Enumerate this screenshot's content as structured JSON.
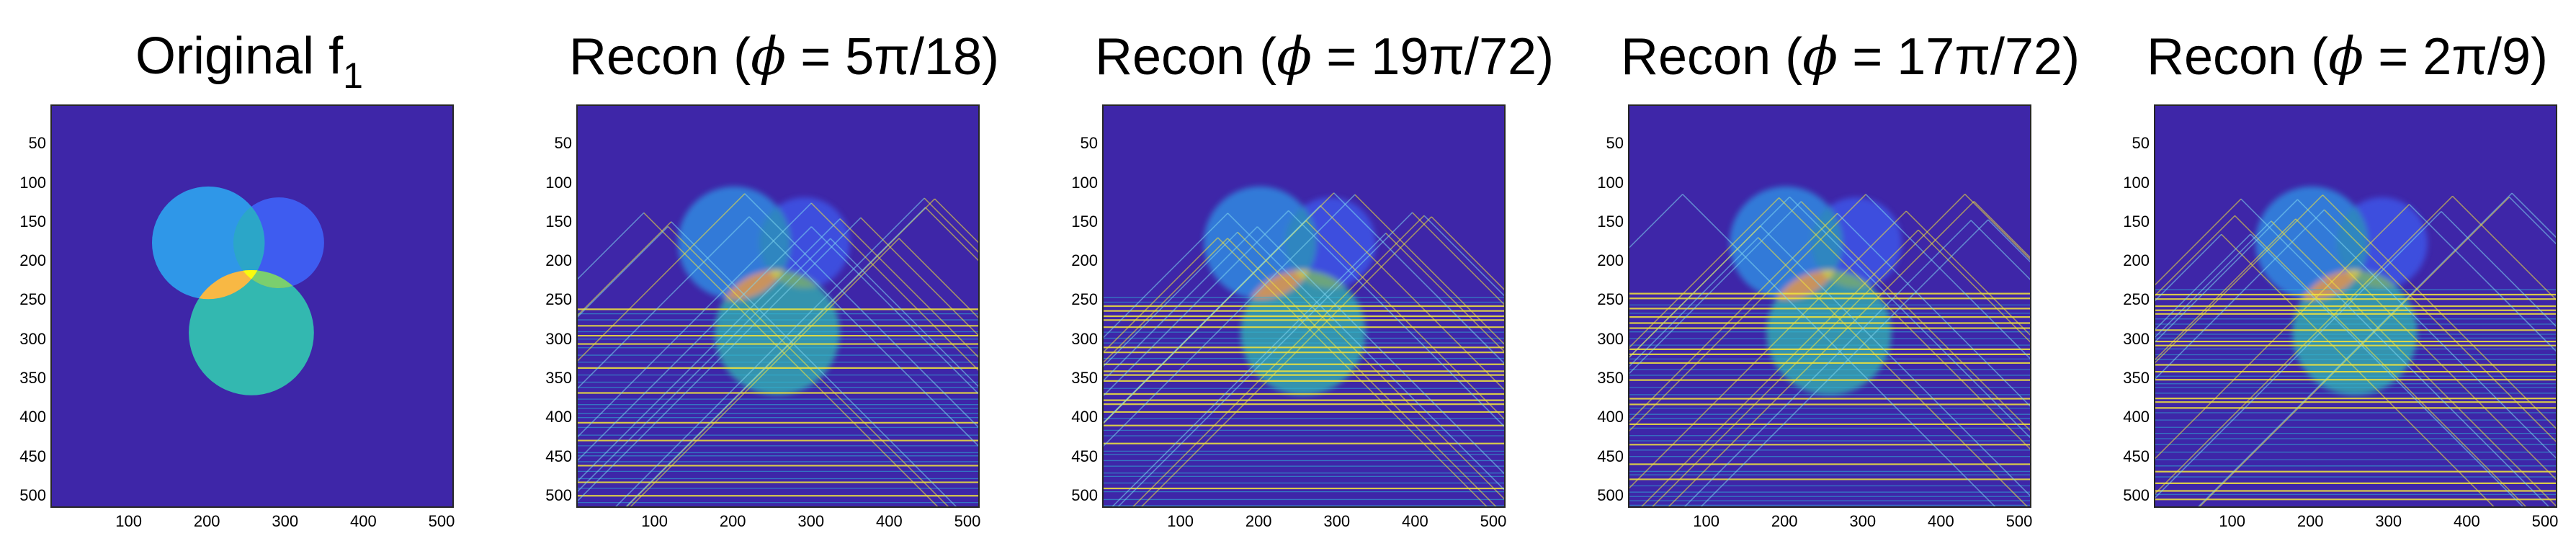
{
  "panels": [
    {
      "title_prefix": "Original f",
      "title_sub": "1",
      "kind": "original"
    },
    {
      "title_prefix": "Recon (",
      "phi_symbol": "ϕ",
      "title_value": " = 5π/18)",
      "kind": "recon"
    },
    {
      "title_prefix": "Recon (",
      "phi_symbol": "ϕ",
      "title_value": " = 19π/72)",
      "kind": "recon"
    },
    {
      "title_prefix": "Recon (",
      "phi_symbol": "ϕ",
      "title_value": " = 17π/72)",
      "kind": "recon"
    },
    {
      "title_prefix": "Recon (",
      "phi_symbol": "ϕ",
      "title_value": " = 2π/9)",
      "kind": "recon"
    }
  ],
  "axes": {
    "yticks": [
      "50",
      "100",
      "150",
      "200",
      "250",
      "300",
      "350",
      "400",
      "450",
      "500"
    ],
    "xticks": [
      "100",
      "200",
      "300",
      "400",
      "500"
    ]
  },
  "colors": {
    "background": "#3e26a8",
    "circle_left": "#2f97e8",
    "circle_right": "#3e5cf0",
    "circle_bottom": "#33b8b0",
    "overlap_triple": "#f9fb0e",
    "overlap_lb": "#f8b844",
    "overlap_lr": "#2ba6c8",
    "overlap_rb": "#7bcf6e",
    "streak": "#f4e63a"
  }
}
